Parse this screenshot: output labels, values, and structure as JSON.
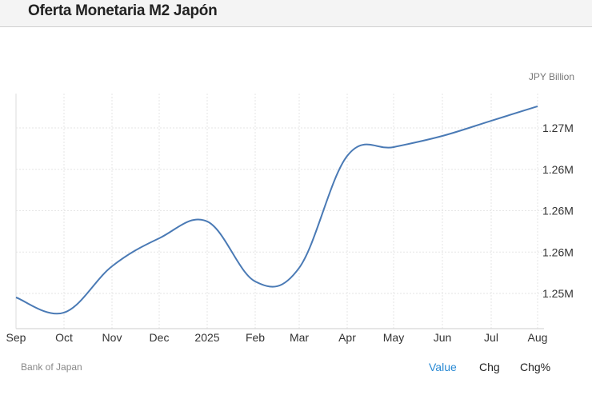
{
  "header": {
    "title": "Oferta Monetaria M2 Japón"
  },
  "chart_data": {
    "type": "line",
    "title": "Oferta Monetaria M2 Japón",
    "unit": "JPY Billion",
    "categories": [
      "Sep",
      "Oct",
      "Nov",
      "Dec",
      "2025",
      "Feb",
      "Mar",
      "Apr",
      "May",
      "Jun",
      "Jul",
      "Aug"
    ],
    "values": [
      1253710,
      1252610,
      1255970,
      1258000,
      1259220,
      1254870,
      1255860,
      1263970,
      1264610,
      1265420,
      1266520,
      1267570
    ],
    "yticks": [
      1254000,
      1257000,
      1260000,
      1263000,
      1266000
    ],
    "ytick_labels": [
      "1.25M",
      "1.26M",
      "1.26M",
      "1.26M",
      "1.27M"
    ],
    "ylim": [
      1251300,
      1268500
    ],
    "grid": true,
    "color": "#4a7ab5"
  },
  "footer": {
    "source": "Bank of Japan",
    "tabs": [
      "Value",
      "Chg",
      "Chg%"
    ],
    "active_color": "#2a8ad4"
  }
}
